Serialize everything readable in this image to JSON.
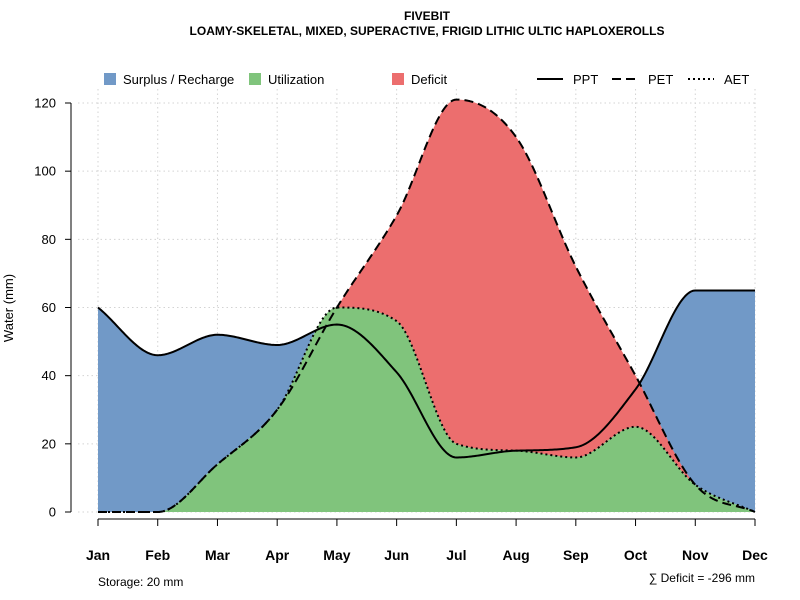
{
  "chart_data": {
    "type": "area",
    "title": "FIVEBIT",
    "subtitle": "LOAMY-SKELETAL, MIXED, SUPERACTIVE, FRIGID LITHIC ULTIC HAPLOXEROLLS",
    "ylabel": "Water (mm)",
    "xlabel": "",
    "ylim": [
      0,
      120
    ],
    "yticks": [
      "0",
      "20",
      "40",
      "60",
      "80",
      "100",
      "120"
    ],
    "grid": true,
    "categories": [
      "Jan",
      "Feb",
      "Mar",
      "Apr",
      "May",
      "Jun",
      "Jul",
      "Aug",
      "Sep",
      "Oct",
      "Nov",
      "Dec"
    ],
    "series": [
      {
        "name": "PPT",
        "style": "solid",
        "values": [
          60,
          46,
          52,
          49,
          55,
          41,
          16,
          18,
          19,
          36,
          65,
          65
        ]
      },
      {
        "name": "PET",
        "style": "dashed",
        "values": [
          0,
          0,
          14,
          30,
          60,
          87,
          121,
          110,
          72,
          40,
          8,
          0
        ]
      },
      {
        "name": "AET",
        "style": "dotted",
        "values": [
          0,
          0,
          14,
          30,
          60,
          56,
          20,
          18,
          16,
          25,
          8,
          0
        ]
      }
    ],
    "legend_position": "top",
    "legend": [
      {
        "label": "Surplus / Recharge",
        "color": "#7199c7"
      },
      {
        "label": "Utilization",
        "color": "#80c47c"
      },
      {
        "label": "Deficit",
        "color": "#ec6e6e"
      }
    ],
    "line_legend": [
      {
        "label": "PPT",
        "style": "solid"
      },
      {
        "label": "PET",
        "style": "dashed"
      },
      {
        "label": "AET",
        "style": "dotted"
      }
    ],
    "annotations": {
      "storage": "Storage: 20 mm",
      "deficit": "∑ Deficit = -296 mm"
    }
  }
}
